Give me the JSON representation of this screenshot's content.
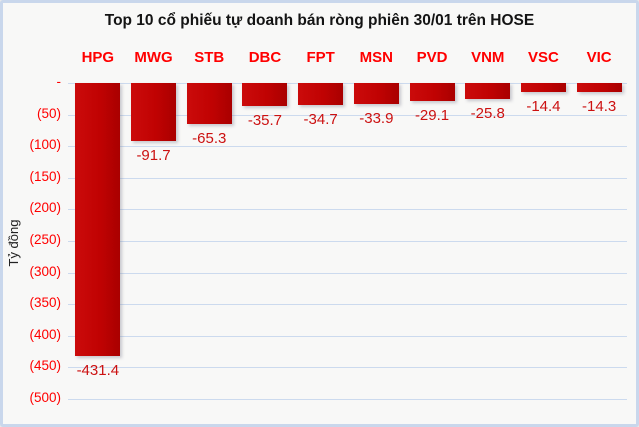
{
  "chart_data": {
    "type": "bar",
    "title": "Top 10 cổ phiếu tự doanh bán ròng phiên 30/01 trên HOSE",
    "ylabel": "Tỷ đồng",
    "unit": "Tỷ đồng",
    "categories": [
      "HPG",
      "MWG",
      "STB",
      "DBC",
      "FPT",
      "MSN",
      "PVD",
      "VNM",
      "VSC",
      "VIC"
    ],
    "values": [
      -431.4,
      -91.7,
      -65.3,
      -35.7,
      -34.7,
      -33.9,
      -29.1,
      -25.8,
      -14.4,
      -14.3
    ],
    "value_labels": [
      "-431.4",
      "-91.7",
      "-65.3",
      "-35.7",
      "-34.7",
      "-33.9",
      "-29.1",
      "-25.8",
      "-14.4",
      "-14.3"
    ],
    "ylim": [
      -500,
      0
    ],
    "ytick_values": [
      0,
      -50,
      -100,
      -150,
      -200,
      -250,
      -300,
      -350,
      -400,
      -450,
      -500
    ],
    "ytick_labels": [
      "-",
      "(50)",
      "(100)",
      "(150)",
      "(200)",
      "(250)",
      "(300)",
      "(350)",
      "(400)",
      "(450)",
      "(500)"
    ],
    "grid": true,
    "legend": "none",
    "colors": {
      "bar": "#c00000",
      "category_labels": "#ff0000",
      "axis_labels": "#ff0000",
      "value_labels": "#cc1111",
      "gridline": "#ccdaee",
      "title": "#141414",
      "frame_border": "#c9d7ec",
      "background": "#f8f8f7"
    }
  }
}
